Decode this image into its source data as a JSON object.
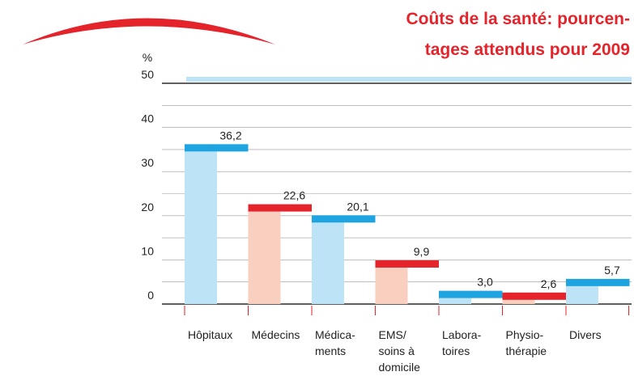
{
  "chart_data": {
    "type": "bar",
    "title_lines": [
      "Coûts de la santé: pourcen-",
      "tages attendus pour 2009"
    ],
    "y_label": "%",
    "categories": [
      "Hôpitaux",
      "Médecins",
      "Médica-\nments",
      "EMS/\nsoins à\ndomicile",
      "Labora-\ntoires",
      "Physio-\nthérapie",
      "Divers"
    ],
    "values": [
      36.2,
      22.6,
      20.1,
      9.9,
      3.0,
      2.6,
      5.7
    ],
    "value_labels": [
      "36,2",
      "22,6",
      "20,1",
      "9,9",
      "3,0",
      "2,6",
      "5,7"
    ],
    "cap_colors": [
      "#1ea4e0",
      "#e4232b",
      "#1ea4e0",
      "#e4232b",
      "#1ea4e0",
      "#e4232b",
      "#1ea4e0"
    ],
    "fill_colors": [
      "#bde4f6",
      "#f9d0bf",
      "#bde4f6",
      "#f9d0bf",
      "#bde4f6",
      "#f9d0bf",
      "#bde4f6"
    ],
    "ylim": [
      0,
      50
    ],
    "yticks": [
      0,
      10,
      20,
      30,
      40,
      50
    ],
    "minor_yticks": [
      5,
      15,
      25,
      35,
      45
    ],
    "grid": true
  }
}
